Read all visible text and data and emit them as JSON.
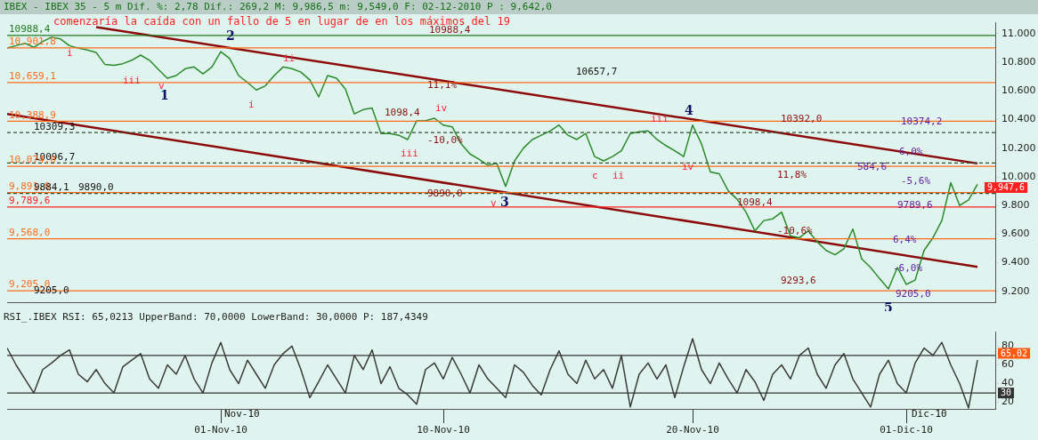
{
  "chart_data": [
    {
      "type": "line",
      "title": "IBEX - IBEX 35 -  5 m Dif. %: 2,78 Dif.: 269,2 M: 9,986,5 m: 9,549,0 F: 02-12-2010 P : 9,642,0",
      "subtitle": "comenzaría la caída con un fallo de 5 en lugar de en los máximos del 19",
      "categories": [
        null,
        null,
        null,
        null,
        null,
        null,
        null,
        null,
        null,
        null,
        null,
        null,
        null,
        null,
        null,
        null,
        null,
        null,
        null,
        null,
        null,
        null,
        null,
        null,
        null,
        null,
        null,
        null,
        null,
        null,
        null,
        null,
        null,
        null,
        null,
        null,
        null,
        null,
        null,
        null,
        null,
        null,
        null,
        null,
        null,
        null,
        null,
        null,
        null,
        null,
        null,
        null,
        null,
        null,
        null,
        null,
        null,
        null,
        null,
        null,
        null,
        null,
        null,
        null,
        null,
        null,
        null,
        null,
        null,
        null,
        null,
        null,
        null,
        null,
        null,
        null,
        null,
        null,
        null,
        null,
        null,
        null,
        null,
        null,
        null,
        null,
        null,
        null,
        null,
        null,
        null,
        null,
        null,
        null,
        null,
        null,
        null,
        null,
        null,
        null,
        null,
        null,
        null,
        null,
        null,
        null,
        null,
        null,
        null,
        null
      ],
      "series": [
        {
          "color": "#2a8a2a",
          "values": [
            10900,
            10917,
            10934,
            10905,
            10946,
            10976,
            10964,
            10917,
            10900,
            10887,
            10869,
            10785,
            10780,
            10791,
            10815,
            10851,
            10815,
            10750,
            10690,
            10708,
            10756,
            10768,
            10720,
            10768,
            10875,
            10827,
            10708,
            10660,
            10607,
            10636,
            10708,
            10768,
            10756,
            10732,
            10678,
            10559,
            10708,
            10690,
            10613,
            10440,
            10470,
            10482,
            10303,
            10303,
            10291,
            10261,
            10392,
            10392,
            10410,
            10362,
            10350,
            10231,
            10160,
            10124,
            10082,
            10094,
            9933,
            10112,
            10201,
            10261,
            10291,
            10321,
            10362,
            10291,
            10261,
            10303,
            10142,
            10112,
            10142,
            10183,
            10303,
            10315,
            10321,
            10261,
            10219,
            10183,
            10142,
            10362,
            10231,
            10034,
            10022,
            9903,
            9844,
            9754,
            9623,
            9695,
            9707,
            9754,
            9587,
            9575,
            9623,
            9546,
            9486,
            9456,
            9498,
            9635,
            9427,
            9367,
            9290,
            9218,
            9367,
            9249,
            9279,
            9486,
            9575,
            9695,
            9960,
            9800,
            9840,
            9947.6
          ]
        },
        {
          "color": "#8b0a0a",
          "values": [
            null,
            null,
            null,
            null,
            null,
            null,
            null,
            null,
            null,
            null,
            11046,
            null,
            null,
            null,
            null,
            null,
            null,
            null,
            null,
            null,
            null,
            null,
            null,
            null,
            null,
            null,
            null,
            null,
            null,
            null,
            null,
            null,
            null,
            null,
            null,
            null,
            null,
            null,
            null,
            null,
            null,
            null,
            null,
            null,
            null,
            null,
            null,
            null,
            null,
            null,
            null,
            null,
            null,
            null,
            null,
            null,
            null,
            null,
            null,
            null,
            null,
            null,
            null,
            null,
            null,
            null,
            null,
            null,
            null,
            null,
            null,
            null,
            null,
            null,
            null,
            null,
            null,
            null,
            null,
            null,
            null,
            null,
            null,
            null,
            null,
            null,
            null,
            null,
            null,
            null,
            null,
            null,
            null,
            null,
            null,
            null,
            null,
            null,
            null,
            null,
            null,
            null,
            null,
            null,
            null,
            null,
            null,
            null,
            null,
            10094
          ]
        },
        {
          "color": "#8b0a0a",
          "values": [
            10440,
            null,
            null,
            null,
            null,
            null,
            null,
            null,
            null,
            null,
            null,
            null,
            null,
            null,
            null,
            null,
            null,
            null,
            null,
            null,
            null,
            null,
            null,
            null,
            null,
            null,
            null,
            null,
            null,
            null,
            null,
            null,
            null,
            null,
            null,
            null,
            null,
            null,
            null,
            null,
            null,
            null,
            null,
            null,
            null,
            null,
            null,
            null,
            null,
            null,
            null,
            null,
            null,
            null,
            null,
            null,
            null,
            null,
            null,
            null,
            null,
            null,
            null,
            null,
            null,
            null,
            null,
            null,
            null,
            null,
            null,
            null,
            null,
            null,
            null,
            null,
            null,
            null,
            null,
            null,
            null,
            null,
            null,
            null,
            null,
            null,
            null,
            null,
            null,
            null,
            null,
            null,
            null,
            null,
            null,
            null,
            null,
            null,
            null,
            null,
            null,
            null,
            null,
            null,
            null,
            null,
            null,
            null,
            null,
            9372
          ]
        }
      ],
      "ylim": [
        9122,
        11077
      ],
      "yticks": [
        {
          "value": 9200,
          "label": "9.200"
        },
        {
          "value": 9400,
          "label": "9.400"
        },
        {
          "value": 9600,
          "label": "9.600"
        },
        {
          "value": 9800,
          "label": "9.800"
        },
        {
          "value": 10000,
          "label": "10.000"
        },
        {
          "value": 10200,
          "label": "10.200"
        },
        {
          "value": 10400,
          "label": "10.400"
        },
        {
          "value": 10600,
          "label": "10.600"
        },
        {
          "value": 10800,
          "label": "10.800"
        },
        {
          "value": 11000,
          "label": "11.000"
        }
      ],
      "ref_lines": [
        {
          "axis": "y",
          "value": 10988.4,
          "label": "10988,4",
          "color": "#1e7a1e"
        },
        {
          "axis": "y",
          "value": 10901.8,
          "label": "10,901,8",
          "color": "#ff6a1a"
        },
        {
          "axis": "y",
          "value": 10659.1,
          "label": "10,659,1",
          "color": "#ff6a1a"
        },
        {
          "axis": "y",
          "value": 10388.9,
          "label": "10,388,9",
          "color": "#ff6a1a"
        },
        {
          "axis": "y",
          "value": 10309.3,
          "label": "10309,3",
          "color": "#2f4f2f",
          "line_style": "dashed"
        },
        {
          "axis": "y",
          "value": 10096.7,
          "label": "10096,7",
          "color": "#2f4f2f",
          "line_style": "dashed"
        },
        {
          "axis": "y",
          "value": 10074.0,
          "label": "10,074,0",
          "color": "#ff6a1a"
        },
        {
          "axis": "y",
          "value": 9891.0,
          "label": "9,891,0",
          "color": "#ff6a1a"
        },
        {
          "axis": "y",
          "value": 9884.1,
          "label": "9884,1",
          "color": "#2f4f2f",
          "line_style": "dashed"
        },
        {
          "axis": "y",
          "value": 9789.6,
          "label": "9,789,6",
          "color": "#ff2020"
        },
        {
          "axis": "y",
          "value": 9568.0,
          "label": "9,568,0",
          "color": "#ff6a1a"
        },
        {
          "axis": "y",
          "value": 9205.0,
          "label": "9,205,0",
          "color": "#ff6a1a"
        }
      ],
      "annotations": [
        "1",
        "2",
        "3",
        "4",
        "5",
        "i",
        "iii",
        "v",
        "i",
        "ii",
        "iii",
        "iv",
        "v",
        "iii",
        "iv",
        "c",
        "ii",
        "11,1%",
        "-10,0%",
        "10988,4",
        "9890,0",
        "1098,4",
        "10657,7",
        "10392,0",
        "11,8%",
        "9293,6",
        "1098,4",
        "10374,2",
        "6,0%",
        "584,6",
        "-5,6%",
        "9789,6",
        "6,4%",
        "-6,0%",
        "9205,0",
        "-10,6%",
        "9890,0",
        "9205,0",
        "9,947,6"
      ],
      "legend": false,
      "grid": false,
      "tick_labels": "y"
    },
    {
      "type": "line",
      "title": "RSI_.IBEX RSI: 65,0213 UpperBand: 70,0000 LowerBand: 30,0000 P: 187,4349",
      "categories": [
        null,
        null,
        null,
        null,
        null,
        null,
        null,
        null,
        null,
        null,
        null,
        null,
        null,
        null,
        null,
        null,
        null,
        null,
        null,
        null,
        null,
        null,
        null,
        null,
        "01-Nov-10",
        null,
        null,
        null,
        null,
        null,
        null,
        null,
        null,
        null,
        null,
        null,
        null,
        null,
        null,
        null,
        null,
        null,
        null,
        null,
        null,
        null,
        null,
        null,
        null,
        "10-Nov-10",
        null,
        null,
        null,
        null,
        null,
        null,
        null,
        null,
        null,
        null,
        null,
        null,
        null,
        null,
        null,
        null,
        null,
        null,
        null,
        null,
        null,
        null,
        null,
        null,
        null,
        null,
        null,
        "20-Nov-10",
        null,
        null,
        null,
        null,
        null,
        null,
        null,
        null,
        null,
        null,
        null,
        null,
        null,
        null,
        null,
        null,
        null,
        null,
        null,
        null,
        null,
        null,
        null,
        "01-Dic-10",
        null,
        null,
        null,
        null,
        null,
        null,
        null,
        null
      ],
      "series": [
        {
          "color": "#3a3a3a",
          "values": [
            78,
            60,
            45,
            30,
            55,
            62,
            70,
            76,
            50,
            42,
            55,
            40,
            30,
            58,
            65,
            72,
            45,
            35,
            60,
            50,
            70,
            45,
            30,
            62,
            84,
            55,
            40,
            65,
            50,
            35,
            60,
            72,
            80,
            55,
            25,
            42,
            60,
            45,
            30,
            70,
            55,
            76,
            40,
            58,
            35,
            28,
            18,
            55,
            62,
            45,
            68,
            50,
            30,
            60,
            45,
            35,
            25,
            60,
            52,
            38,
            28,
            55,
            75,
            50,
            40,
            65,
            45,
            55,
            35,
            70,
            15,
            50,
            62,
            45,
            60,
            25,
            58,
            88,
            55,
            40,
            62,
            45,
            30,
            55,
            42,
            22,
            50,
            60,
            45,
            70,
            78,
            50,
            35,
            60,
            72,
            45,
            30,
            15,
            50,
            65,
            40,
            30,
            62,
            78,
            70,
            84,
            60,
            40,
            14,
            65
          ]
        }
      ],
      "ylim": [
        13,
        95
      ],
      "yticks": [
        20,
        40,
        60,
        80
      ],
      "ref_lines": [
        {
          "axis": "y",
          "value": 70,
          "color": "#333333"
        },
        {
          "axis": "y",
          "value": 30,
          "label": "30",
          "color": "#333333"
        }
      ],
      "annotations": [
        "Nov-10",
        "Dic-10",
        "65,02"
      ],
      "legend": false,
      "grid": false
    }
  ]
}
